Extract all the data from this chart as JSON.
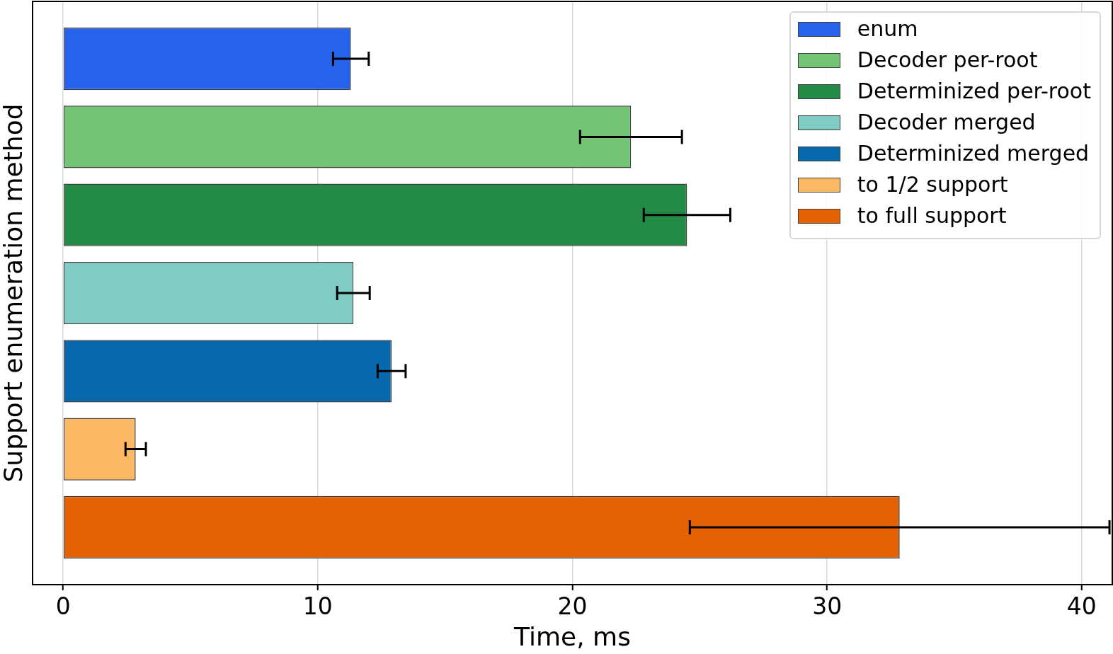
{
  "chart_data": {
    "type": "bar",
    "orientation": "horizontal",
    "xlabel": "Time, ms",
    "ylabel": "Support enumeration method",
    "categories": [
      null,
      null,
      null,
      null,
      null,
      null,
      null
    ],
    "series": [
      {
        "name": "enum",
        "color": "#2563eb",
        "values": [
          11.3,
          null,
          null,
          null,
          null,
          null,
          null
        ],
        "errors": [
          0.7,
          null,
          null,
          null,
          null,
          null,
          null
        ]
      },
      {
        "name": "Decoder per-root",
        "color": "#74c476",
        "values": [
          null,
          22.3,
          null,
          null,
          null,
          null,
          null
        ],
        "errors": [
          null,
          2.0,
          null,
          null,
          null,
          null,
          null
        ]
      },
      {
        "name": "Determinized per-root",
        "color": "#238b45",
        "values": [
          null,
          null,
          24.5,
          null,
          null,
          null,
          null
        ],
        "errors": [
          null,
          null,
          1.7,
          null,
          null,
          null,
          null
        ]
      },
      {
        "name": "Decoder merged",
        "color": "#7eccc4",
        "values": [
          null,
          null,
          null,
          11.4,
          null,
          null,
          null
        ],
        "errors": [
          null,
          null,
          null,
          0.64,
          null,
          null,
          null
        ]
      },
      {
        "name": "Determinized merged",
        "color": "#0868ac",
        "values": [
          null,
          null,
          null,
          null,
          12.9,
          null,
          null
        ],
        "errors": [
          null,
          null,
          null,
          null,
          0.55,
          null,
          null
        ]
      },
      {
        "name": "to 1/2 support",
        "color": "#fdb863",
        "values": [
          null,
          null,
          null,
          null,
          null,
          2.85,
          null
        ],
        "errors": [
          null,
          null,
          null,
          null,
          null,
          0.4,
          null
        ]
      },
      {
        "name": "to full support",
        "color": "#e66101",
        "values": [
          null,
          null,
          null,
          null,
          null,
          null,
          32.85
        ],
        "errors": [
          null,
          null,
          null,
          null,
          null,
          null,
          8.24
        ]
      }
    ],
    "xlim": [
      -1.2,
      41.2
    ],
    "xticks": [
      0,
      10,
      20,
      30,
      40
    ],
    "grid": "x",
    "legend": "top right",
    "tick_labels": "x"
  }
}
